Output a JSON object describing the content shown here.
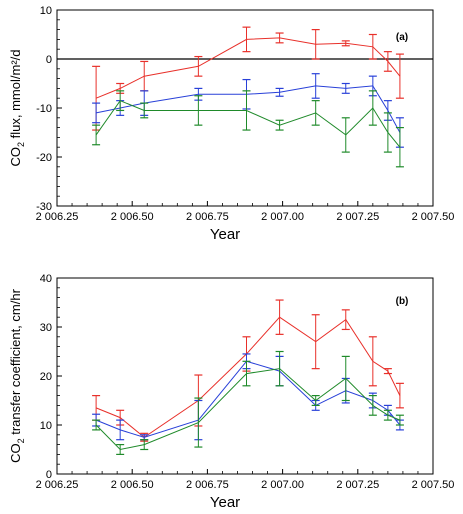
{
  "chart_data": [
    {
      "type": "line",
      "panel_label": "(a)",
      "xlabel": "Year",
      "ylabel": "CO2 flux, mmol/m²/d",
      "ylabel_parts": [
        "CO",
        "2",
        " flux, mmol/m²/d"
      ],
      "xlim": [
        2006.25,
        2007.5
      ],
      "ylim": [
        -30,
        10
      ],
      "xticks": [
        2006.25,
        2006.5,
        2006.75,
        2007.0,
        2007.25,
        2007.5
      ],
      "xtick_labels": [
        "2 006.25",
        "2 006.50",
        "2 006.75",
        "2 007.00",
        "2 007.25",
        "2 007.50"
      ],
      "yticks": [
        -30,
        -20,
        -10,
        0,
        10
      ],
      "ytick_labels": [
        "-30",
        "-20",
        "-10",
        "0",
        "10"
      ],
      "zero_line": 0,
      "grid": false,
      "legend": "none",
      "series": [
        {
          "color": "#e8302a",
          "x": [
            2006.38,
            2006.46,
            2006.54,
            2006.72,
            2006.88,
            2006.99,
            2007.11,
            2007.21,
            2007.3,
            2007.35,
            2007.39
          ],
          "y": [
            -8,
            -6,
            -3.5,
            -1.5,
            4,
            4.3,
            3,
            3.2,
            2.5,
            -0.5,
            -3.5
          ],
          "err": [
            6.5,
            1,
            3,
            2,
            2.5,
            1,
            3,
            0.5,
            2.5,
            2,
            4.5
          ]
        },
        {
          "color": "#2840d8",
          "x": [
            2006.38,
            2006.46,
            2006.54,
            2006.72,
            2006.88,
            2006.99,
            2007.11,
            2007.21,
            2007.3,
            2007.35,
            2007.39
          ],
          "y": [
            -11,
            -10,
            -9,
            -7.2,
            -7.2,
            -6.8,
            -5.5,
            -6,
            -5.5,
            -10.5,
            -15
          ],
          "err": [
            2,
            1.5,
            2.5,
            1.2,
            3,
            0.8,
            2.5,
            1,
            2,
            2,
            3
          ]
        },
        {
          "color": "#1f8a2a",
          "x": [
            2006.38,
            2006.46,
            2006.54,
            2006.72,
            2006.88,
            2006.99,
            2007.11,
            2007.21,
            2007.3,
            2007.35,
            2007.39
          ],
          "y": [
            -15.5,
            -8.5,
            -10.5,
            -10.5,
            -10.5,
            -13.5,
            -11,
            -15.5,
            -10,
            -15,
            -18
          ],
          "err": [
            2,
            2,
            1.5,
            3,
            4,
            1,
            2.5,
            3.5,
            3.5,
            4,
            4
          ]
        }
      ]
    },
    {
      "type": "line",
      "panel_label": "(b)",
      "xlabel": "Year",
      "ylabel": "CO2 transfer coefficient, cm/hr",
      "ylabel_parts": [
        "CO",
        "2",
        " transfer coefficient, cm/hr"
      ],
      "xlim": [
        2006.25,
        2007.5
      ],
      "ylim": [
        0,
        40
      ],
      "xticks": [
        2006.25,
        2006.5,
        2006.75,
        2007.0,
        2007.25,
        2007.5
      ],
      "xtick_labels": [
        "2 006.25",
        "2 006.50",
        "2 006.75",
        "2 007.00",
        "2 007.25",
        "2 007.50"
      ],
      "yticks": [
        0,
        10,
        20,
        30,
        40
      ],
      "ytick_labels": [
        "0",
        "10",
        "20",
        "30",
        "40"
      ],
      "grid": false,
      "legend": "none",
      "series": [
        {
          "color": "#e8302a",
          "x": [
            2006.38,
            2006.46,
            2006.54,
            2006.72,
            2006.88,
            2006.99,
            2007.11,
            2007.21,
            2007.3,
            2007.35,
            2007.39
          ],
          "y": [
            13.5,
            11.5,
            7.5,
            15,
            24.5,
            32,
            27,
            31.5,
            23,
            21,
            16
          ],
          "err": [
            2.5,
            1.5,
            0.8,
            5.2,
            3.5,
            3.5,
            5.5,
            2,
            5,
            0.5,
            2.5
          ]
        },
        {
          "color": "#2840d8",
          "x": [
            2006.38,
            2006.46,
            2006.54,
            2006.72,
            2006.88,
            2006.99,
            2007.11,
            2007.21,
            2007.3,
            2007.35,
            2007.39
          ],
          "y": [
            11,
            9,
            7.5,
            11,
            23,
            21,
            14,
            17,
            15,
            13,
            10
          ],
          "err": [
            1.2,
            2,
            0.5,
            4,
            1.5,
            3,
            1,
            2.5,
            1.5,
            1,
            1
          ]
        },
        {
          "color": "#1f8a2a",
          "x": [
            2006.38,
            2006.46,
            2006.54,
            2006.72,
            2006.88,
            2006.99,
            2007.11,
            2007.21,
            2007.3,
            2007.35,
            2007.39
          ],
          "y": [
            10,
            5,
            6,
            10.5,
            20.5,
            21.5,
            15,
            19.5,
            14,
            12,
            11
          ],
          "err": [
            1,
            1,
            1,
            5,
            2.5,
            3.5,
            1,
            4.5,
            2,
            1,
            1
          ]
        }
      ]
    }
  ]
}
